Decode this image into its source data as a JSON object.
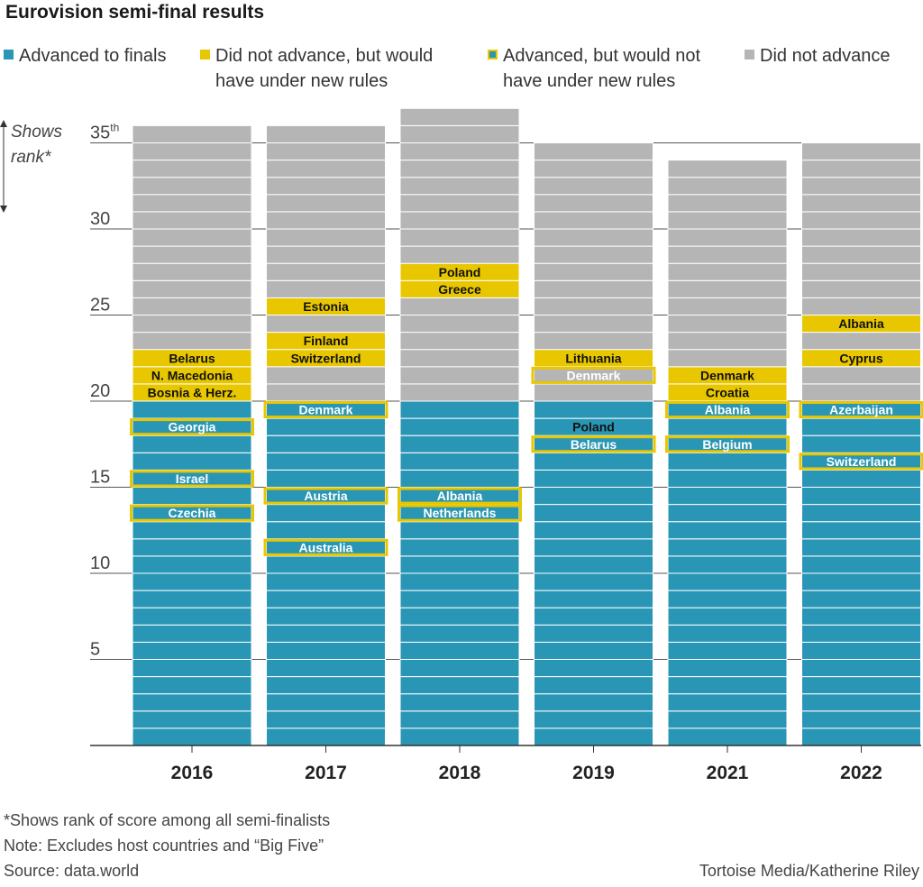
{
  "title": "Eurovision semi-final results",
  "legend": [
    {
      "key": "adv",
      "label_line1": "Advanced to finals",
      "label_line2": ""
    },
    {
      "key": "would",
      "label_line1": "Did not advance, but would",
      "label_line2": "have under new rules"
    },
    {
      "key": "advnot",
      "label_line1": "Advanced, but would not",
      "label_line2": "have under new rules"
    },
    {
      "key": "gray",
      "label_line1": "Did not advance",
      "label_line2": ""
    }
  ],
  "axis_note": {
    "line1": "Shows",
    "line2": "rank*"
  },
  "y_ticks": [
    {
      "value": 5,
      "label": "5",
      "sup": ""
    },
    {
      "value": 10,
      "label": "10",
      "sup": ""
    },
    {
      "value": 15,
      "label": "15",
      "sup": ""
    },
    {
      "value": 20,
      "label": "20",
      "sup": ""
    },
    {
      "value": 25,
      "label": "25",
      "sup": ""
    },
    {
      "value": 30,
      "label": "30",
      "sup": ""
    },
    {
      "value": 35,
      "label": "35",
      "sup": "th"
    }
  ],
  "colors": {
    "advanced": "#2a96b5",
    "would_advance": "#e8c700",
    "did_not_advance": "#b5b5b5",
    "outline": "#e8c700",
    "rule": "#ffffff",
    "axis": "#333333"
  },
  "chart_data": {
    "type": "bar",
    "stacked": true,
    "title": "Eurovision semi-final results",
    "categories": [
      "2016",
      "2017",
      "2018",
      "2019",
      "2021",
      "2022"
    ],
    "ylim": [
      0,
      37
    ],
    "bars": [
      {
        "year": "2016",
        "total": 36,
        "advanced_count": 20,
        "labels": [
          {
            "rank": 23,
            "country": "Belarus",
            "kind": "would"
          },
          {
            "rank": 22,
            "country": "N. Macedonia",
            "kind": "would"
          },
          {
            "rank": 21,
            "country": "Bosnia & Herz.",
            "kind": "would"
          },
          {
            "rank": 19,
            "country": "Georgia",
            "kind": "advnot"
          },
          {
            "rank": 16,
            "country": "Israel",
            "kind": "advnot"
          },
          {
            "rank": 14,
            "country": "Czechia",
            "kind": "advnot"
          }
        ]
      },
      {
        "year": "2017",
        "total": 36,
        "advanced_count": 20,
        "labels": [
          {
            "rank": 26,
            "country": "Estonia",
            "kind": "would"
          },
          {
            "rank": 24,
            "country": "Finland",
            "kind": "would"
          },
          {
            "rank": 23,
            "country": "Switzerland",
            "kind": "would"
          },
          {
            "rank": 20,
            "country": "Denmark",
            "kind": "advnot"
          },
          {
            "rank": 15,
            "country": "Austria",
            "kind": "advnot"
          },
          {
            "rank": 12,
            "country": "Australia",
            "kind": "advnot"
          }
        ]
      },
      {
        "year": "2018",
        "total": 37,
        "advanced_count": 20,
        "labels": [
          {
            "rank": 28,
            "country": "Poland",
            "kind": "would"
          },
          {
            "rank": 27,
            "country": "Greece",
            "kind": "would"
          },
          {
            "rank": 15,
            "country": "Albania",
            "kind": "advnot"
          },
          {
            "rank": 14,
            "country": "Netherlands",
            "kind": "advnot"
          }
        ]
      },
      {
        "year": "2019",
        "total": 35,
        "advanced_count": 20,
        "labels": [
          {
            "rank": 23,
            "country": "Lithuania",
            "kind": "would"
          },
          {
            "rank": 22,
            "country": "Denmark",
            "kind": "advnot"
          },
          {
            "rank": 19,
            "country": "Poland",
            "kind": "would"
          },
          {
            "rank": 18,
            "country": "Belarus",
            "kind": "advnot"
          }
        ]
      },
      {
        "year": "2021",
        "total": 34,
        "advanced_count": 20,
        "labels": [
          {
            "rank": 22,
            "country": "Denmark",
            "kind": "would"
          },
          {
            "rank": 21,
            "country": "Croatia",
            "kind": "would"
          },
          {
            "rank": 20,
            "country": "Albania",
            "kind": "advnot"
          },
          {
            "rank": 18,
            "country": "Belgium",
            "kind": "advnot"
          }
        ]
      },
      {
        "year": "2022",
        "total": 35,
        "advanced_count": 20,
        "labels": [
          {
            "rank": 25,
            "country": "Albania",
            "kind": "would"
          },
          {
            "rank": 23,
            "country": "Cyprus",
            "kind": "would"
          },
          {
            "rank": 20,
            "country": "Azerbaijan",
            "kind": "advnot"
          },
          {
            "rank": 17,
            "country": "Switzerland",
            "kind": "advnot"
          }
        ]
      }
    ]
  },
  "footnotes": [
    "*Shows rank of score among all semi-finalists",
    "Note: Excludes host countries and “Big Five”",
    "Source: data.world"
  ],
  "credit": "Tortoise Media/Katherine Riley"
}
